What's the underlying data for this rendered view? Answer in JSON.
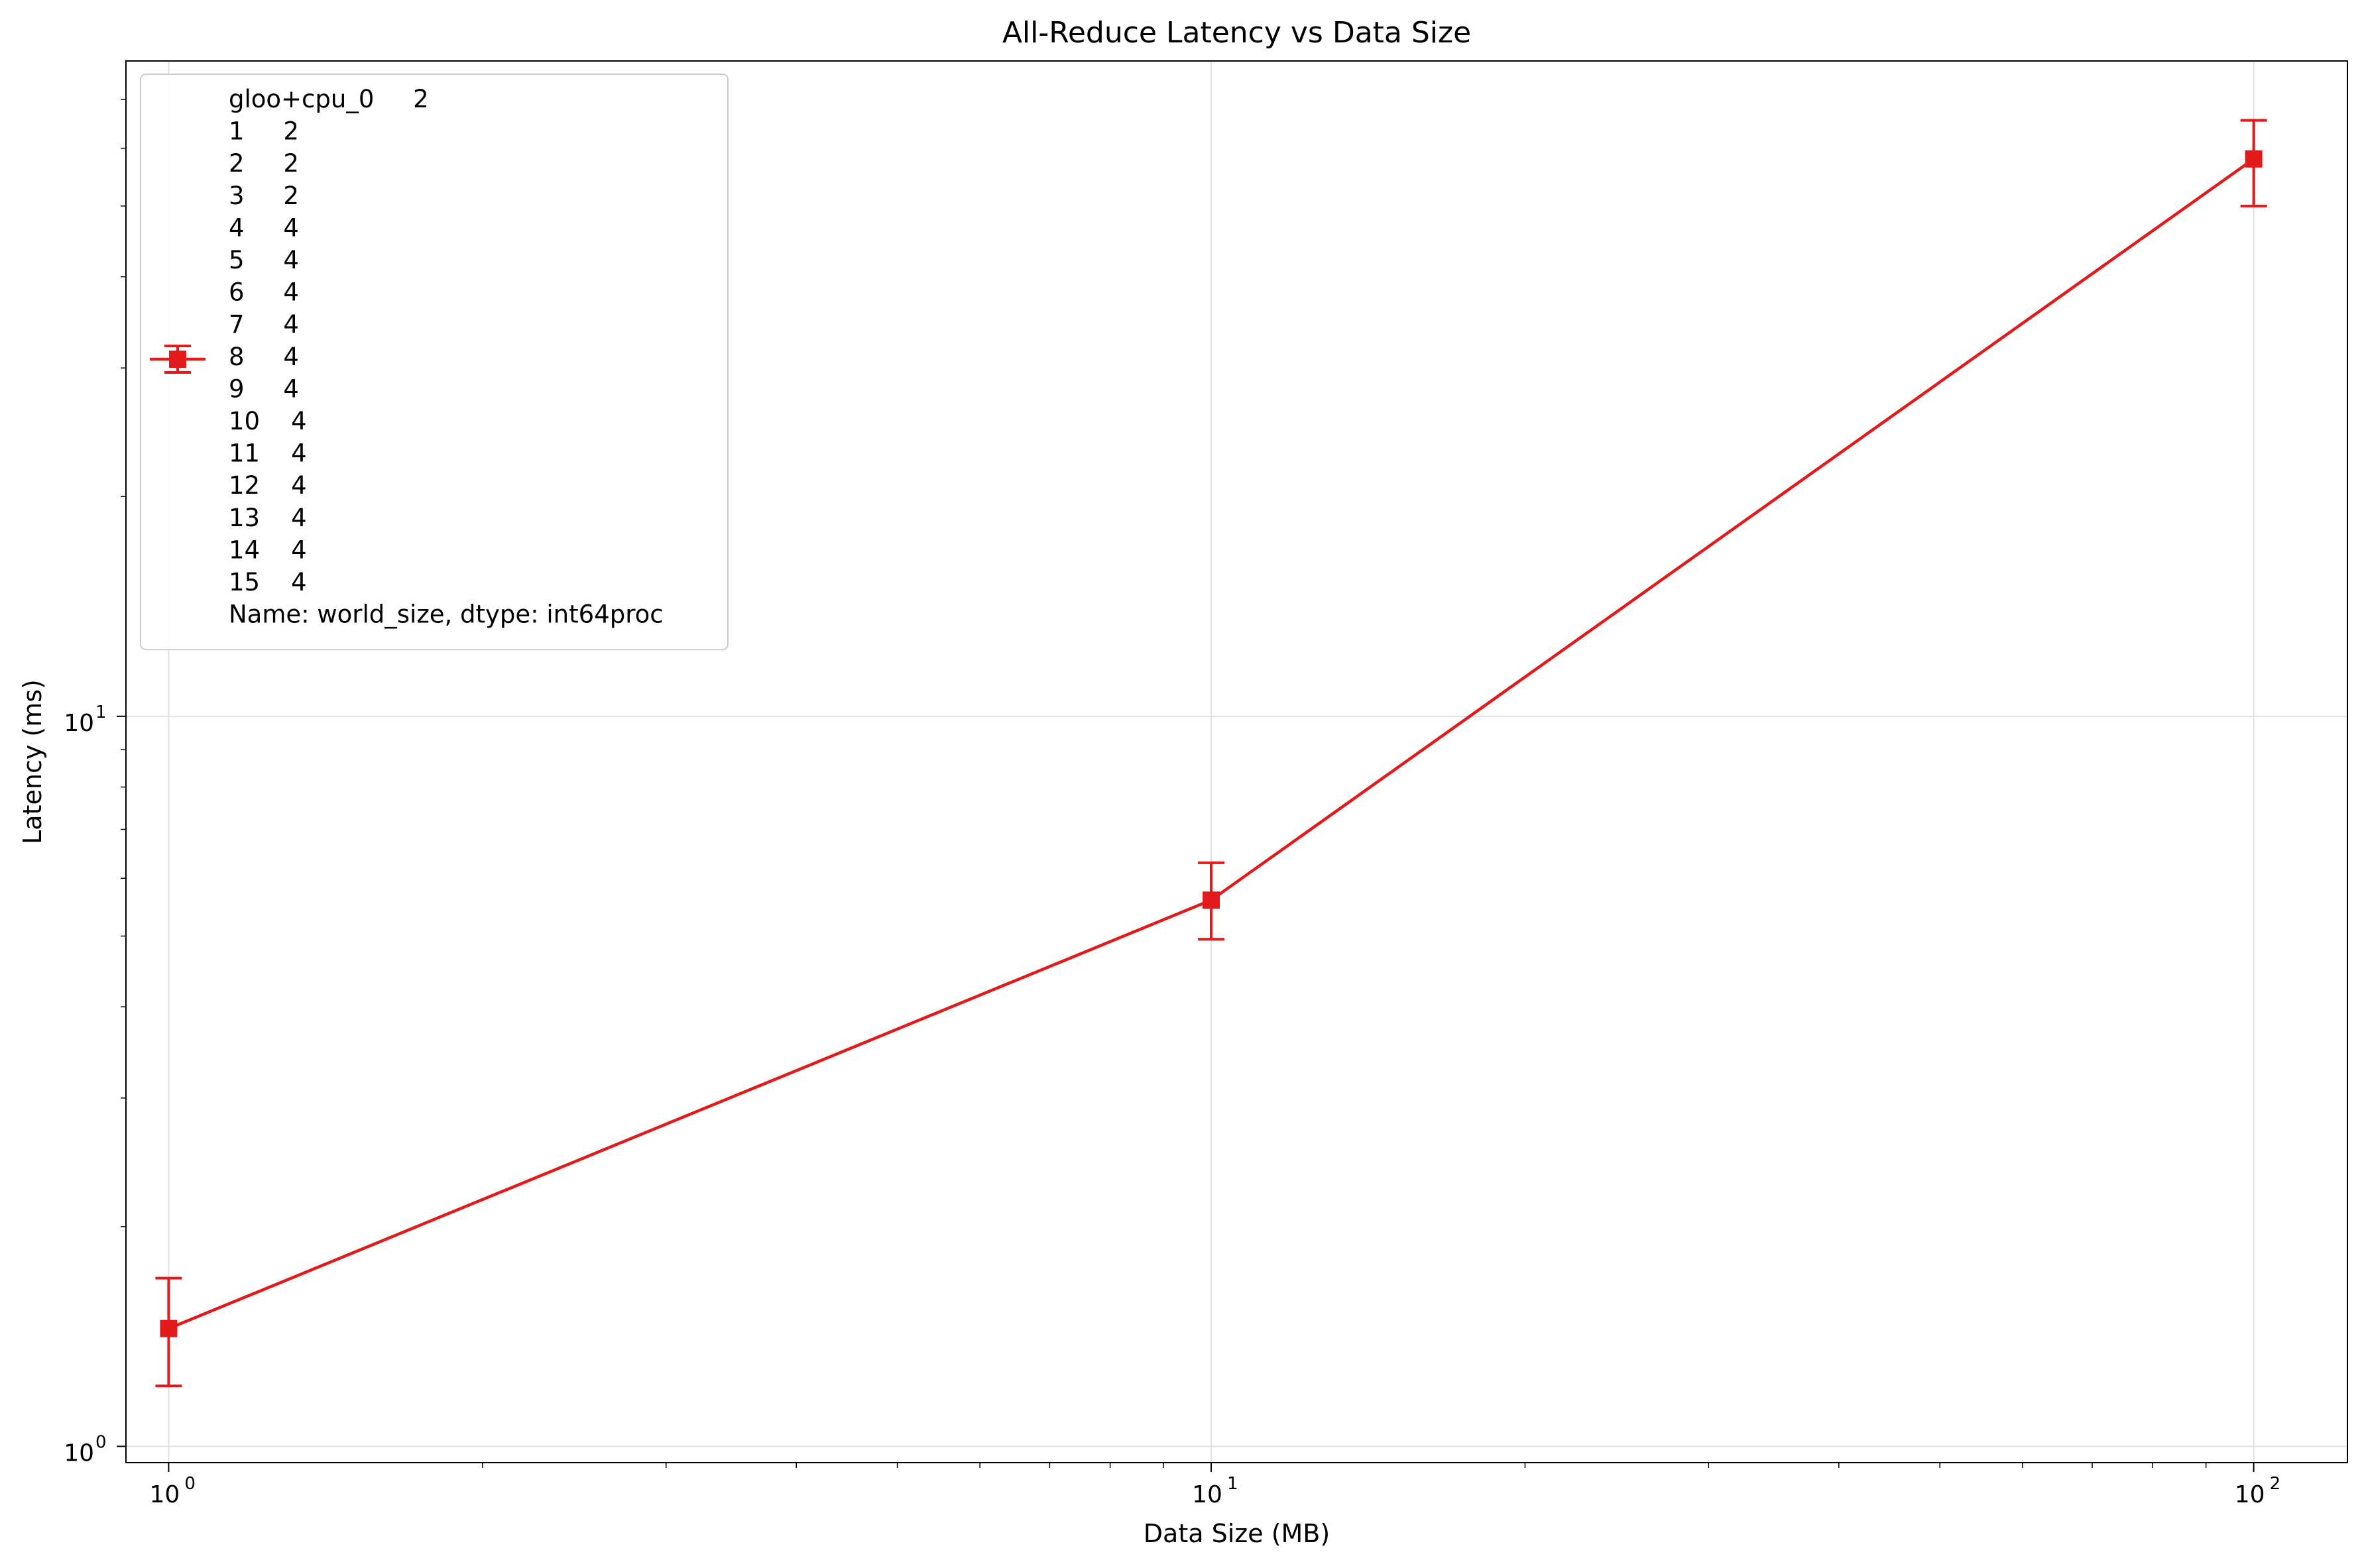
{
  "chart_data": {
    "type": "line",
    "title": "All-Reduce Latency vs Data Size",
    "xlabel": "Data Size (MB)",
    "ylabel": "Latency (ms)",
    "x_scale": "log",
    "y_scale": "log",
    "xlim": [
      0.91,
      123
    ],
    "ylim": [
      0.95,
      79
    ],
    "grid": true,
    "x_ticks": [
      {
        "base": "10",
        "exp": "0",
        "value": 1
      },
      {
        "base": "10",
        "exp": "1",
        "value": 10
      },
      {
        "base": "10",
        "exp": "2",
        "value": 100
      }
    ],
    "y_ticks": [
      {
        "base": "10",
        "exp": "0",
        "value": 1
      },
      {
        "base": "10",
        "exp": "1",
        "value": 10
      }
    ],
    "legend": {
      "placement": "upper-left",
      "lines": [
        "gloo+cpu_0     2",
        "1     2",
        "2     2",
        "3     2",
        "4     4",
        "5     4",
        "6     4",
        "7     4",
        "8     4",
        "9     4",
        "10    4",
        "11    4",
        "12    4",
        "13    4",
        "14    4",
        "15    4",
        "Name: world_size, dtype: int64proc"
      ]
    },
    "series": [
      {
        "color": "#e31a1c",
        "marker": "square",
        "x": [
          1,
          10,
          100
        ],
        "y": [
          1.45,
          5.6,
          58.0
        ],
        "yerr_low": [
          1.21,
          4.95,
          50.0
        ],
        "yerr_high": [
          1.7,
          6.3,
          65.5
        ]
      }
    ]
  }
}
